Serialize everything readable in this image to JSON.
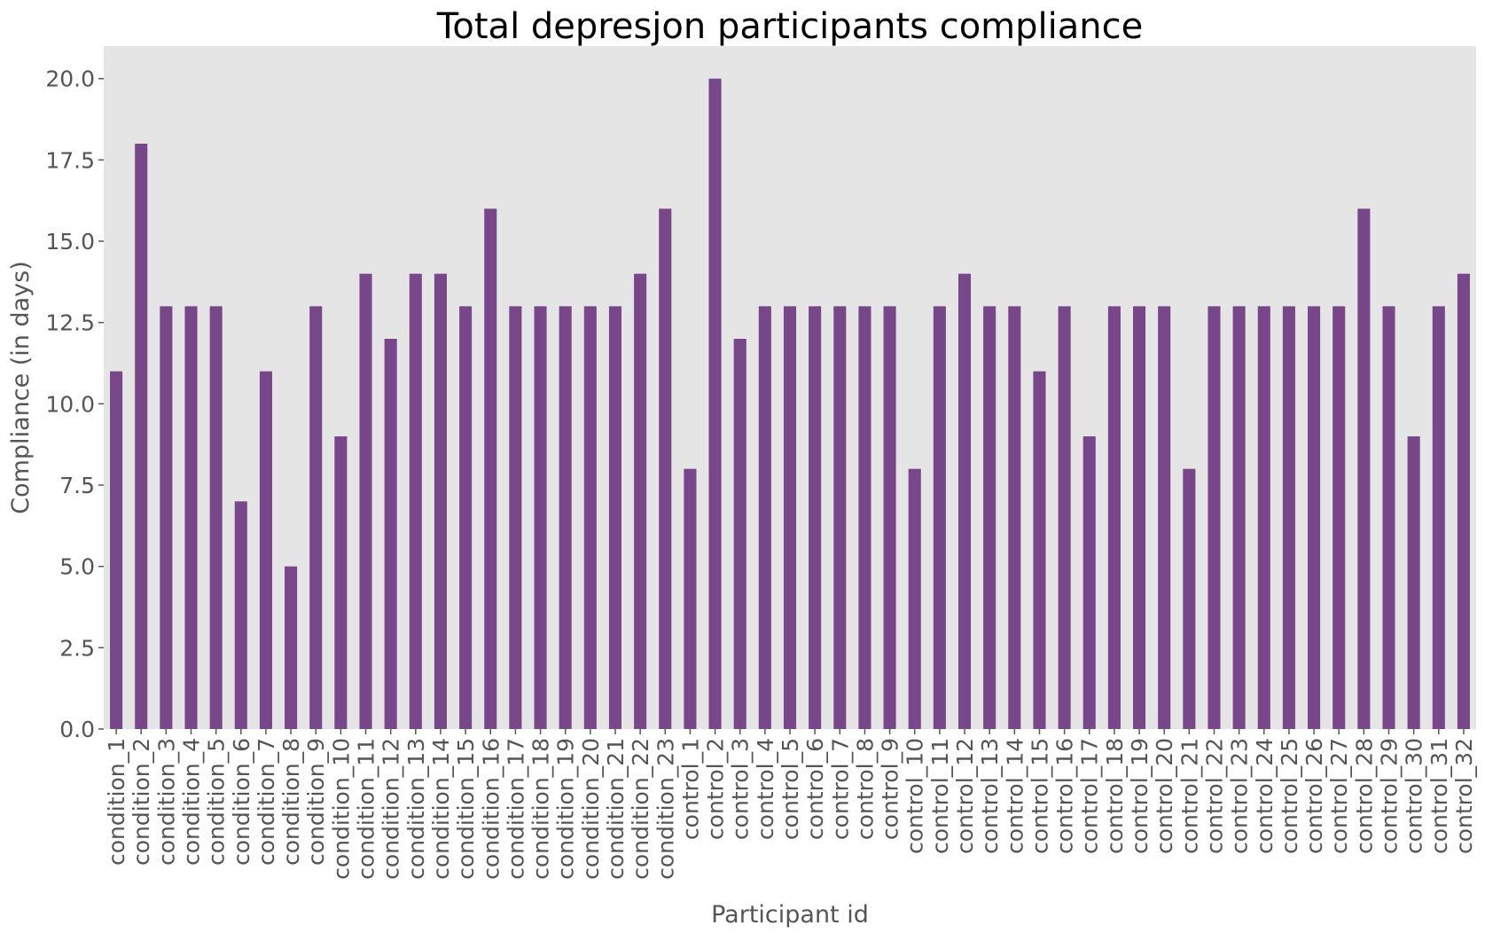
{
  "chart_data": {
    "type": "bar",
    "title": "Total depresjon participants compliance",
    "xlabel": "Participant id",
    "ylabel": "Compliance (in days)",
    "ylim": [
      0,
      21
    ],
    "yticks": [
      "0.0",
      "2.5",
      "5.0",
      "7.5",
      "10.0",
      "12.5",
      "15.0",
      "17.5",
      "20.0"
    ],
    "grid": false,
    "bar_color": "#77478a",
    "background_color": "#e5e5e5",
    "categories": [
      "condition_1",
      "condition_2",
      "condition_3",
      "condition_4",
      "condition_5",
      "condition_6",
      "condition_7",
      "condition_8",
      "condition_9",
      "condition_10",
      "condition_11",
      "condition_12",
      "condition_13",
      "condition_14",
      "condition_15",
      "condition_16",
      "condition_17",
      "condition_18",
      "condition_19",
      "condition_20",
      "condition_21",
      "condition_22",
      "condition_23",
      "control_1",
      "control_2",
      "control_3",
      "control_4",
      "control_5",
      "control_6",
      "control_7",
      "control_8",
      "control_9",
      "control_10",
      "control_11",
      "control_12",
      "control_13",
      "control_14",
      "control_15",
      "control_16",
      "control_17",
      "control_18",
      "control_19",
      "control_20",
      "control_21",
      "control_22",
      "control_23",
      "control_24",
      "control_25",
      "control_26",
      "control_27",
      "control_28",
      "control_29",
      "control_30",
      "control_31",
      "control_32"
    ],
    "values": [
      11,
      18,
      13,
      13,
      13,
      7,
      11,
      5,
      13,
      9,
      14,
      12,
      14,
      14,
      13,
      16,
      13,
      13,
      13,
      13,
      13,
      14,
      16,
      8,
      20,
      12,
      13,
      13,
      13,
      13,
      13,
      13,
      8,
      13,
      14,
      13,
      13,
      11,
      13,
      9,
      13,
      13,
      13,
      8,
      13,
      13,
      13,
      13,
      13,
      13,
      16,
      13,
      9,
      13,
      14
    ]
  }
}
